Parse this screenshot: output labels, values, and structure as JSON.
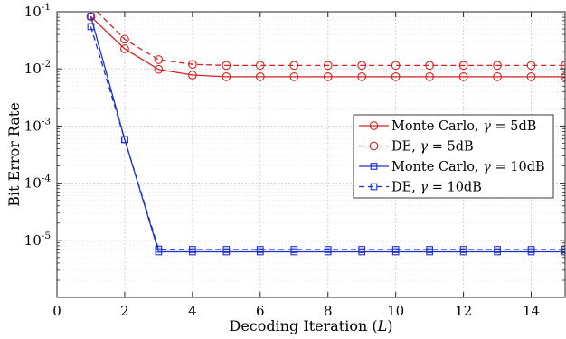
{
  "chart_data": {
    "type": "line",
    "title": "",
    "xlabel": "Decoding Iteration (L)",
    "ylabel": "Bit Error Rate",
    "xlim": [
      0,
      15
    ],
    "ylim": [
      1e-06,
      0.1
    ],
    "yscale": "log",
    "grid": "on (major and minor)",
    "legend_position": "right-middle",
    "x_ticks": [
      0,
      2,
      4,
      6,
      8,
      10,
      12,
      14
    ],
    "y_ticks": [
      {
        "value": 1e-05,
        "base": "10",
        "exp": "-5"
      },
      {
        "value": 0.0001,
        "base": "10",
        "exp": "-4"
      },
      {
        "value": 0.001,
        "base": "10",
        "exp": "-3"
      },
      {
        "value": 0.01,
        "base": "10",
        "exp": "-2"
      },
      {
        "value": 0.1,
        "base": "10",
        "exp": "-1"
      }
    ],
    "x": [
      1,
      2,
      3,
      4,
      5,
      6,
      7,
      8,
      9,
      10,
      11,
      12,
      13,
      14,
      15
    ],
    "series": [
      {
        "name": "Monte Carlo, γ = 5dB",
        "color": "#d62020",
        "dash": "solid",
        "marker": "circle",
        "values": [
          0.082,
          0.0225,
          0.0098,
          0.0078,
          0.0073,
          0.0073,
          0.0073,
          0.0073,
          0.0073,
          0.0073,
          0.0073,
          0.0073,
          0.0073,
          0.0073,
          0.0073
        ]
      },
      {
        "name": "DE, γ = 5dB",
        "color": "#d62020",
        "dash": "dashed",
        "marker": "circle",
        "values": [
          0.13,
          0.033,
          0.0145,
          0.012,
          0.0115,
          0.0115,
          0.0115,
          0.0115,
          0.0115,
          0.0115,
          0.0115,
          0.0115,
          0.0115,
          0.0115,
          0.0115
        ]
      },
      {
        "name": "Monte Carlo, γ = 10dB",
        "color": "#1f2fcf",
        "dash": "solid",
        "marker": "square",
        "values": [
          0.083,
          0.00058,
          6.3e-06,
          6.3e-06,
          6.3e-06,
          6.3e-06,
          6.3e-06,
          6.3e-06,
          6.3e-06,
          6.3e-06,
          6.3e-06,
          6.3e-06,
          6.3e-06,
          6.3e-06,
          6.3e-06
        ]
      },
      {
        "name": "DE, γ = 10dB",
        "color": "#1f2fcf",
        "dash": "dashed",
        "marker": "square",
        "values": [
          0.055,
          0.00058,
          7e-06,
          6.9e-06,
          6.9e-06,
          6.9e-06,
          6.9e-06,
          6.9e-06,
          6.9e-06,
          6.9e-06,
          6.9e-06,
          6.9e-06,
          6.9e-06,
          6.9e-06,
          6.9e-06
        ]
      }
    ]
  }
}
